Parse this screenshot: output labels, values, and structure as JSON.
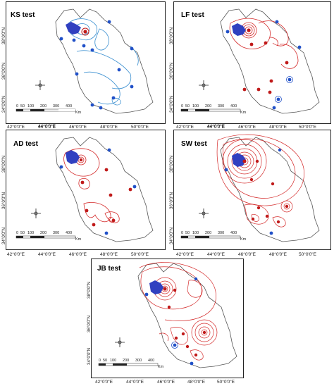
{
  "figure": {
    "panels": [
      {
        "id": "ks",
        "title": "KS test",
        "contour_color": "#3a8fd0"
      },
      {
        "id": "lf",
        "title": "LF test",
        "contour_color": "#d42a2a"
      },
      {
        "id": "ad",
        "title": "AD test",
        "contour_color": "#d42a2a"
      },
      {
        "id": "sw",
        "title": "SW test",
        "contour_color": "#d42a2a"
      },
      {
        "id": "jb",
        "title": "JB test",
        "contour_color": "#d42a2a"
      }
    ],
    "lat_labels": [
      "38°0'0\"N",
      "36°0'0\"N",
      "34°0'0\"N"
    ],
    "lat_labels_jb": [
      "38°0'0\"N",
      "36°0'0\"N",
      "34°0'0\"N",
      "32°0'0\"N"
    ],
    "lon_labels_top": [
      "42°0'0\"E",
      "44°0'0\"E",
      "46°0'0\"E",
      "48°0'0\"E",
      "50°0'0\"E"
    ],
    "lon_labels_bottom": [
      "42°0'0\"E",
      "44°0'0\"E",
      "46°0'0\"E",
      "48°0'0\"E",
      "50°0'0\"E"
    ],
    "scale_bar": {
      "ticks": [
        "0",
        "50",
        "100",
        "200",
        "300",
        "400"
      ],
      "unit": "Km"
    },
    "north_arrow_icon": "compass-rose-icon",
    "colors": {
      "blue_station": "#2050c8",
      "red_station": "#c01a1a",
      "lake": "#3040c0"
    }
  }
}
